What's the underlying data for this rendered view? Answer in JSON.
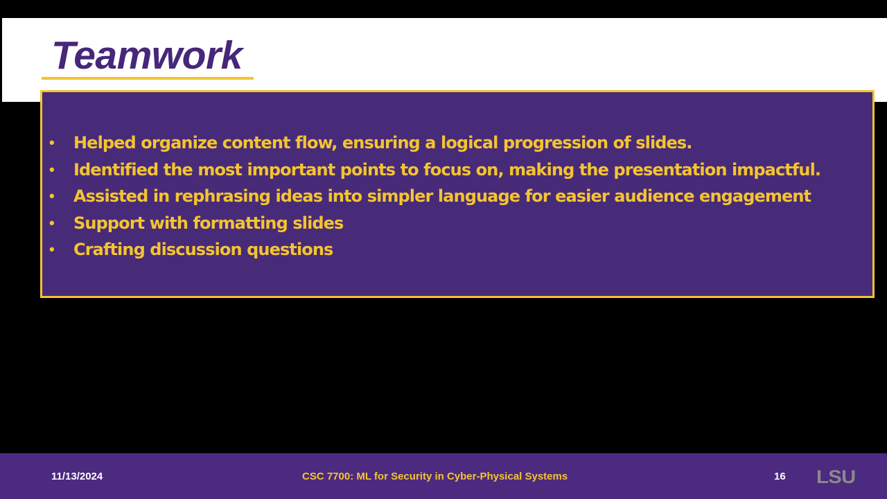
{
  "slide": {
    "title": "Teamwork",
    "bullet_symbol": "•",
    "bullets": [
      "Helped organize content flow, ensuring a logical progression of slides.",
      "Identified the most important points to focus on, making the presentation impactful.",
      "Assisted in rephrasing ideas into simpler language for easier audience engagement",
      "Support with formatting slides",
      "Crafting discussion questions"
    ]
  },
  "footer": {
    "date": "11/13/2024",
    "course": "CSC 7700: ML for Security in Cyber-Physical Systems",
    "page_number": "16",
    "logo_text": "LSU"
  },
  "colors": {
    "purple": "#482b78",
    "gold": "#f4c430",
    "white": "#ffffff",
    "background": "#000000"
  }
}
